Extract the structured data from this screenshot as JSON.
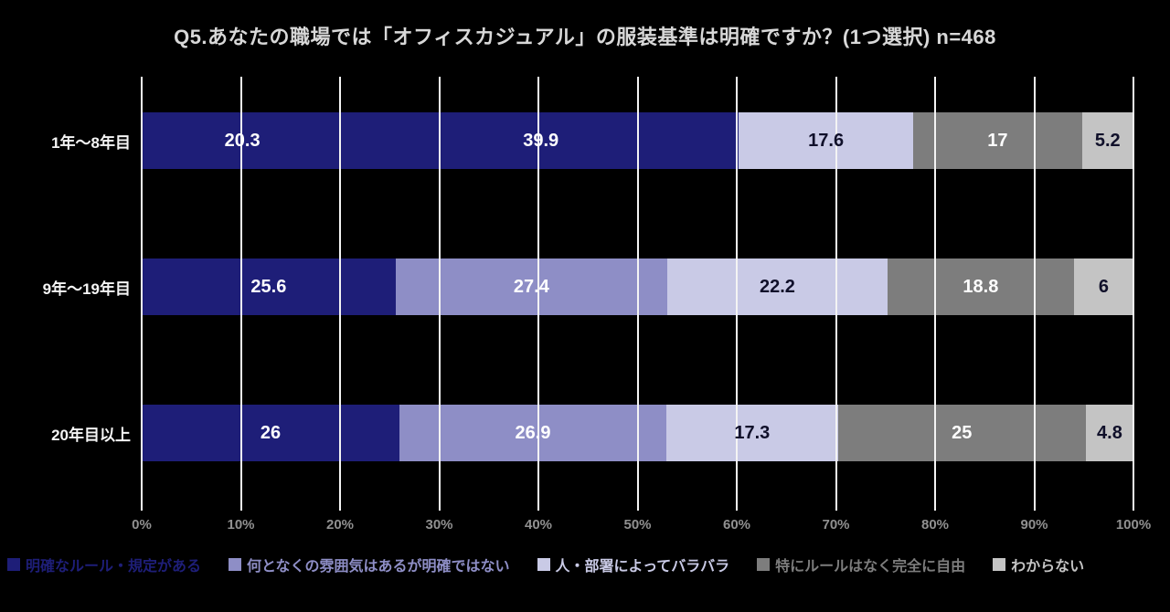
{
  "page": {
    "background": "#000000"
  },
  "chart_data": {
    "type": "bar",
    "variant": "horizontal-stacked",
    "title": "Q5.あなたの職場では「オフィスカジュアル」の服装基準は明確ですか？(1つ選択) n=468",
    "grid": true,
    "legend_position": "bottom",
    "axis": {
      "min": 0,
      "max": 100,
      "ticks": [
        "0%",
        "10%",
        "20%",
        "30%",
        "40%",
        "50%",
        "60%",
        "70%",
        "80%",
        "90%",
        "100%"
      ]
    },
    "series": [
      {
        "name": "明確なルール・規定がある",
        "color": "#1e1e78",
        "label_color": "#ffffff"
      },
      {
        "name": "何となくの雰囲気はあるが明確ではない",
        "color": "#8e8ec6",
        "label_color": "#ffffff"
      },
      {
        "name": "人・部署によってバラバラ",
        "color": "#c9cae6",
        "label_color": "#10102a"
      },
      {
        "name": "特にルールはなく完全に自由",
        "color": "#7d7d7d",
        "label_color": "#ffffff"
      },
      {
        "name": "わからない",
        "color": "#c4c4c4",
        "label_color": "#10102a"
      }
    ],
    "categories": [
      "1年〜8年目",
      "9年〜19年目",
      "20年目以上"
    ],
    "rows": [
      {
        "category": "1年〜8年目",
        "segments": [
          {
            "series": 0,
            "value": 20.3,
            "label": "20.3"
          },
          {
            "series": 1,
            "value": 39.9,
            "label": "39.9",
            "color_series": 0
          },
          {
            "series": 2,
            "value": 17.6,
            "label": "17.6"
          },
          {
            "series": 3,
            "value": 17,
            "label": "17"
          },
          {
            "series": 4,
            "value": 5.2,
            "label": "5.2"
          }
        ]
      },
      {
        "category": "9年〜19年目",
        "segments": [
          {
            "series": 0,
            "value": 25.6,
            "label": "25.6"
          },
          {
            "series": 1,
            "value": 27.4,
            "label": "27.4"
          },
          {
            "series": 2,
            "value": 22.2,
            "label": "22.2"
          },
          {
            "series": 3,
            "value": 18.8,
            "label": "18.8"
          },
          {
            "series": 4,
            "value": 6,
            "label": "6"
          }
        ]
      },
      {
        "category": "20年目以上",
        "segments": [
          {
            "series": 0,
            "value": 26,
            "label": "26"
          },
          {
            "series": 1,
            "value": 26.9,
            "label": "26.9"
          },
          {
            "series": 2,
            "value": 17.3,
            "label": "17.3"
          },
          {
            "series": 3,
            "value": 25,
            "label": "25"
          },
          {
            "series": 4,
            "value": 4.8,
            "label": "4.8"
          }
        ]
      }
    ]
  }
}
